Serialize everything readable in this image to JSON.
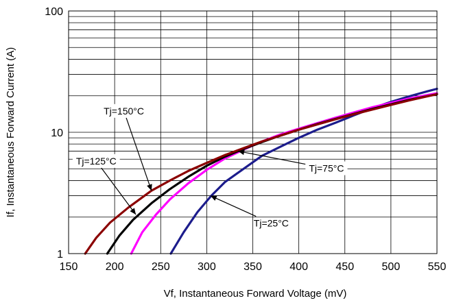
{
  "chart_data": {
    "type": "line",
    "xlabel": "Vf, Instantaneous Forward  Voltage (mV)",
    "ylabel": "If, Instantaneous Forward Current (A)",
    "xlim": [
      150,
      550
    ],
    "ylim": [
      1,
      100
    ],
    "y_scale": "log",
    "x_ticks": [
      150,
      200,
      250,
      300,
      350,
      400,
      450,
      500,
      550
    ],
    "x_tick_labels": [
      "150",
      "200",
      "250",
      "300",
      "350",
      "400",
      "450",
      "500",
      "550"
    ],
    "y_ticks": [
      1,
      10,
      100
    ],
    "y_tick_labels": [
      "1",
      "10",
      "100"
    ],
    "grid": true,
    "series": [
      {
        "name": "Tj=25°C",
        "color": "#1c1c8c",
        "x": [
          261,
          275,
          290,
          305,
          320,
          340,
          360,
          380,
          400,
          420,
          440,
          460,
          480,
          500,
          520,
          540,
          550
        ],
        "y": [
          1.0,
          1.5,
          2.2,
          3.0,
          3.9,
          5.0,
          6.4,
          7.6,
          9.0,
          10.5,
          12.0,
          13.8,
          15.8,
          17.8,
          19.8,
          21.8,
          22.8
        ]
      },
      {
        "name": "Tj=75°C",
        "color": "#ff00ff",
        "x": [
          218,
          230,
          245,
          260,
          280,
          300,
          320,
          340,
          360,
          380,
          400,
          420,
          440,
          460,
          480,
          500,
          520,
          550
        ],
        "y": [
          1.0,
          1.5,
          2.1,
          2.8,
          3.8,
          4.9,
          6.1,
          7.2,
          8.4,
          9.6,
          10.7,
          11.9,
          13.2,
          14.6,
          16.1,
          17.5,
          19.0,
          21.0
        ]
      },
      {
        "name": "Tj=125°C",
        "color": "#000000",
        "x": [
          192,
          205,
          220,
          240,
          260,
          280,
          300,
          320,
          340,
          360,
          380,
          400,
          420,
          440,
          460,
          480,
          500,
          520,
          550
        ],
        "y": [
          1.0,
          1.4,
          1.9,
          2.6,
          3.4,
          4.3,
          5.3,
          6.3,
          7.3,
          8.3,
          9.4,
          10.5,
          11.7,
          12.9,
          14.2,
          15.6,
          17.0,
          18.5,
          20.6
        ]
      },
      {
        "name": "Tj=150°C",
        "color": "#8b0000",
        "x": [
          168,
          180,
          195,
          215,
          240,
          260,
          280,
          300,
          320,
          340,
          360,
          380,
          400,
          420,
          440,
          460,
          480,
          500,
          520,
          550
        ],
        "y": [
          1.0,
          1.35,
          1.8,
          2.4,
          3.3,
          4.0,
          4.8,
          5.6,
          6.5,
          7.4,
          8.4,
          9.4,
          10.5,
          11.6,
          12.8,
          14.1,
          15.4,
          16.8,
          18.3,
          20.6
        ]
      }
    ],
    "annotations": [
      {
        "text": "Tj=150°C",
        "label_x": 210,
        "label_y": 15.0,
        "arrow_to_x": 240,
        "arrow_to_y": 3.3,
        "box": true
      },
      {
        "text": "Tj=125°C",
        "label_x": 180,
        "label_y": 5.8,
        "arrow_to_x": 223,
        "arrow_to_y": 2.1,
        "box": true
      },
      {
        "text": "Tj=75°C",
        "label_x": 430,
        "label_y": 5.05,
        "arrow_to_x": 334,
        "arrow_to_y": 7.0,
        "box": true
      },
      {
        "text": "Tj=25°C",
        "label_x": 370,
        "label_y": 1.78,
        "arrow_to_x": 304,
        "arrow_to_y": 3.0,
        "box": false
      }
    ]
  }
}
